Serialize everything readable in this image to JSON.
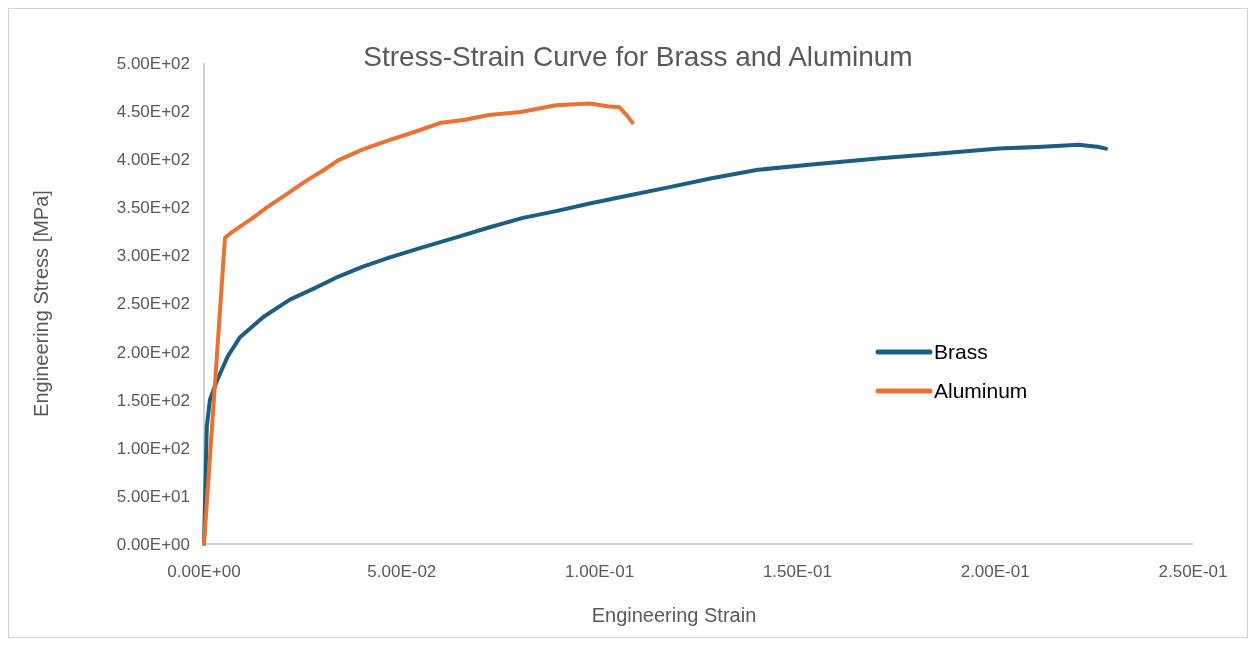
{
  "chart_data": {
    "type": "line",
    "title": "Stress-Strain Curve for Brass and Aluminum",
    "xlabel": "Engineering Strain",
    "ylabel": "Engineering Stress [MPa]",
    "xlim": [
      0,
      0.25
    ],
    "ylim": [
      0,
      500
    ],
    "xticks": [
      {
        "value": 0,
        "label": "0.00E+00"
      },
      {
        "value": 0.05,
        "label": "5.00E-02"
      },
      {
        "value": 0.1,
        "label": "1.00E-01"
      },
      {
        "value": 0.15,
        "label": "1.50E-01"
      },
      {
        "value": 0.2,
        "label": "2.00E-01"
      },
      {
        "value": 0.25,
        "label": "2.50E-01"
      }
    ],
    "yticks": [
      {
        "value": 0,
        "label": "0.00E+00"
      },
      {
        "value": 50,
        "label": "5.00E+01"
      },
      {
        "value": 100,
        "label": "1.00E+02"
      },
      {
        "value": 150,
        "label": "1.50E+02"
      },
      {
        "value": 200,
        "label": "2.00E+02"
      },
      {
        "value": 250,
        "label": "2.50E+02"
      },
      {
        "value": 300,
        "label": "3.00E+02"
      },
      {
        "value": 350,
        "label": "3.50E+02"
      },
      {
        "value": 400,
        "label": "4.00E+02"
      },
      {
        "value": 450,
        "label": "4.50E+02"
      },
      {
        "value": 500,
        "label": "5.00E+02"
      }
    ],
    "grid": false,
    "legend": "right",
    "marker": "none",
    "line_style": "solid",
    "series": [
      {
        "name": "Brass",
        "color": "#1a5e80",
        "x": [
          0,
          0.0007,
          0.0015,
          0.0033,
          0.006,
          0.0091,
          0.015,
          0.0217,
          0.028,
          0.034,
          0.04,
          0.047,
          0.055,
          0.064,
          0.072,
          0.0806,
          0.089,
          0.0975,
          0.107,
          0.1177,
          0.128,
          0.14,
          0.155,
          0.171,
          0.186,
          0.201,
          0.212,
          0.221,
          0.2258,
          0.228
        ],
        "values": [
          0,
          122,
          150,
          170,
          195,
          215,
          236,
          254,
          266,
          278,
          288,
          298,
          308,
          319,
          329,
          339,
          346,
          354,
          362,
          371,
          380,
          389,
          395,
          401,
          406,
          411,
          413,
          415,
          413,
          411
        ]
      },
      {
        "name": "Aluminum",
        "color": "#e97132",
        "x": [
          0,
          0.002,
          0.004,
          0.0053,
          0.007,
          0.0091,
          0.012,
          0.0159,
          0.021,
          0.026,
          0.03,
          0.034,
          0.04,
          0.047,
          0.053,
          0.06,
          0.066,
          0.072,
          0.08,
          0.089,
          0.0975,
          0.102,
          0.105,
          0.107,
          0.1083
        ],
        "values": [
          0,
          120,
          240,
          318,
          324,
          330,
          338,
          350,
          364,
          378,
          388,
          399,
          410,
          420,
          428,
          438,
          441,
          446,
          449,
          456,
          458,
          455,
          454,
          445,
          438
        ]
      }
    ]
  }
}
